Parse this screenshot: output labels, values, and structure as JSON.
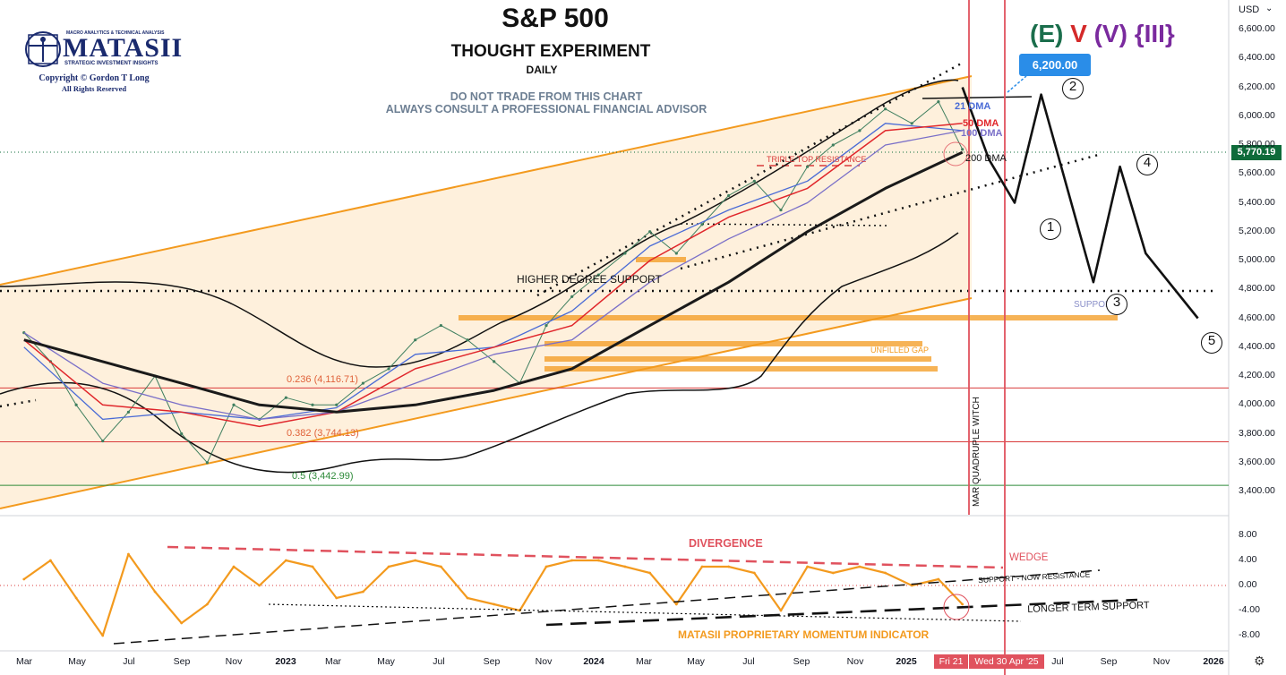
{
  "header": {
    "title": "S&P 500",
    "subtitle": "THOUGHT EXPERIMENT",
    "interval": "DAILY",
    "disclaimer_line1": "DO NOT TRADE FROM THIS CHART",
    "disclaimer_line2": "ALWAYS CONSULT A PROFESSIONAL FINANCIAL ADVISOR",
    "wave_label_e": "(E)",
    "wave_label_v": "V",
    "wave_label_paren_v": "(V)",
    "wave_label_iii": "{III}"
  },
  "logo": {
    "top_text": "MACRO ANALYTICS & TECHNICAL ANALYSIS",
    "name": "MATASII",
    "tagline": "STRATEGIC INVESTMENT INSIGHTS",
    "copyright": "Copyright © Gordon T Long",
    "rights": "All Rights Reserved"
  },
  "toolbar": {
    "currency": "USD",
    "currency_caret": "⌄",
    "settings_icon": "gear-icon"
  },
  "price_tag": "5,770.19",
  "target_tag": "6,200.00",
  "time_tags": {
    "last_bar": "Fri 21",
    "cursor_date": "Wed 30 Apr '25"
  },
  "annotations": {
    "dma_21": "21 DMA",
    "dma_50": "50 DMA",
    "dma_100": "100 DMA",
    "dma_200": "200 DMA",
    "triple_top": "TRIPLE TOP RESISTANCE",
    "higher_degree_support": "HIGHER DEGREE SUPPORT",
    "unfilled_gap": "UNFILLED GAP",
    "support": "SUPPORT",
    "quad_witch": "MAR QUADRUPLE WITCH",
    "fib_236": "0.236 (4,116.71)",
    "fib_382": "0.382 (3,744.13)",
    "fib_5": "0.5 (3,442.99)",
    "divergence": "DIVERGENCE",
    "wedge": "WEDGE",
    "support_resistance": "SUPPORT - NOW RESISTANCE",
    "longer_term_support": "LONGER TERM SUPPORT",
    "momentum_indicator": "MATASII PROPRIETARY MOMENTUM INDICATOR"
  },
  "wave_points": [
    "1",
    "2",
    "3",
    "4",
    "5"
  ],
  "colors": {
    "channel": "#f39a1e",
    "channel_fill": "#fdebd0",
    "price": "#3f7f5f",
    "dma_21": "#4a6bd6",
    "dma_50": "#e0262b",
    "dma_100": "#7a6fc8",
    "dma_200": "#1a1a1a",
    "fib_line": "#d93b3b",
    "fib_05": "#2e8b3a",
    "vertical_marker": "#e0525e",
    "momentum": "#f39a1e",
    "divergence": "#e0525e",
    "wave_e": "#1b6e4c",
    "wave_v": "#d42a2a",
    "wave_iii": "#7a2a9e"
  },
  "chart_data": [
    {
      "type": "line",
      "title": "S&P 500",
      "series": [
        {
          "name": "S&P 500",
          "x": [
            "2022-03",
            "2022-04",
            "2022-05",
            "2022-06",
            "2022-07",
            "2022-08",
            "2022-09",
            "2022-10",
            "2022-11",
            "2022-12",
            "2023-01",
            "2023-02",
            "2023-03",
            "2023-04",
            "2023-05",
            "2023-06",
            "2023-07",
            "2023-08",
            "2023-09",
            "2023-10",
            "2023-11",
            "2023-12",
            "2024-01",
            "2024-02",
            "2024-03",
            "2024-04",
            "2024-05",
            "2024-06",
            "2024-07",
            "2024-08",
            "2024-09",
            "2024-10",
            "2024-11",
            "2024-12",
            "2025-01",
            "2025-02",
            "2025-03"
          ],
          "values": [
            4500,
            4300,
            4000,
            3750,
            3950,
            4200,
            3800,
            3600,
            4000,
            3900,
            4050,
            4000,
            4000,
            4150,
            4250,
            4450,
            4550,
            4450,
            4300,
            4150,
            4550,
            4750,
            4900,
            5050,
            5200,
            5050,
            5250,
            5450,
            5550,
            5350,
            5650,
            5800,
            5900,
            6050,
            5950,
            6100,
            5770
          ]
        },
        {
          "name": "21 DMA",
          "x": [
            "2022-03",
            "2022-06",
            "2022-09",
            "2022-12",
            "2023-03",
            "2023-06",
            "2023-09",
            "2023-12",
            "2024-03",
            "2024-06",
            "2024-09",
            "2024-12",
            "2025-03"
          ],
          "values": [
            4400,
            3900,
            3950,
            3900,
            3980,
            4350,
            4400,
            4650,
            5100,
            5350,
            5550,
            5950,
            5900
          ]
        },
        {
          "name": "50 DMA",
          "x": [
            "2022-03",
            "2022-06",
            "2022-09",
            "2022-12",
            "2023-03",
            "2023-06",
            "2023-09",
            "2023-12",
            "2024-03",
            "2024-06",
            "2024-09",
            "2024-12",
            "2025-03"
          ],
          "values": [
            4450,
            4000,
            3950,
            3850,
            3950,
            4250,
            4400,
            4550,
            5000,
            5300,
            5500,
            5900,
            5950
          ]
        },
        {
          "name": "100 DMA",
          "x": [
            "2022-03",
            "2022-06",
            "2022-09",
            "2022-12",
            "2023-03",
            "2023-06",
            "2023-09",
            "2023-12",
            "2024-03",
            "2024-06",
            "2024-09",
            "2024-12",
            "2025-03"
          ],
          "values": [
            4500,
            4150,
            4000,
            3900,
            3950,
            4150,
            4350,
            4450,
            4850,
            5150,
            5400,
            5800,
            5900
          ]
        },
        {
          "name": "200 DMA",
          "x": [
            "2022-03",
            "2022-06",
            "2022-09",
            "2022-12",
            "2023-03",
            "2023-06",
            "2023-09",
            "2023-12",
            "2024-03",
            "2024-06",
            "2024-09",
            "2024-12",
            "2025-03"
          ],
          "values": [
            4450,
            4300,
            4150,
            4000,
            3950,
            4000,
            4100,
            4250,
            4550,
            4850,
            5200,
            5500,
            5750
          ]
        },
        {
          "name": "Projection",
          "x": [
            "2025-03",
            "2025-04",
            "2025-05",
            "2025-06",
            "2025-08",
            "2025-09",
            "2025-10",
            "2025-12"
          ],
          "values": [
            6200,
            5700,
            5400,
            6150,
            4850,
            5650,
            5050,
            4600
          ]
        }
      ],
      "ylim": [
        3300,
        6700
      ],
      "yticks": [
        "6,600.00",
        "6,400.00",
        "6,200.00",
        "6,000.00",
        "5,800.00",
        "5,600.00",
        "5,400.00",
        "5,200.00",
        "5,000.00",
        "4,800.00",
        "4,600.00",
        "4,400.00",
        "4,200.00",
        "4,000.00",
        "3,800.00",
        "3,600.00",
        "3,400.00"
      ],
      "xticks": [
        "Mar",
        "May",
        "Jul",
        "Sep",
        "Nov",
        "2023",
        "Mar",
        "May",
        "Jul",
        "Sep",
        "Nov",
        "2024",
        "Mar",
        "May",
        "Jul",
        "Sep",
        "Nov",
        "2025",
        "Jul",
        "Sep",
        "Nov",
        "2026"
      ],
      "levels": {
        "fib_236": 4116.71,
        "fib_382": 3744.13,
        "fib_5": 3442.99,
        "support": 4800,
        "target": 6200
      },
      "grid": false,
      "legend": "none"
    },
    {
      "type": "line",
      "title": "MATASII PROPRIETARY MOMENTUM INDICATOR",
      "series": [
        {
          "name": "Momentum",
          "x": [
            "2022-03",
            "2022-04",
            "2022-05",
            "2022-06",
            "2022-07",
            "2022-08",
            "2022-09",
            "2022-10",
            "2022-11",
            "2022-12",
            "2023-01",
            "2023-02",
            "2023-03",
            "2023-04",
            "2023-05",
            "2023-06",
            "2023-07",
            "2023-08",
            "2023-09",
            "2023-10",
            "2023-11",
            "2023-12",
            "2024-01",
            "2024-02",
            "2024-03",
            "2024-04",
            "2024-05",
            "2024-06",
            "2024-07",
            "2024-08",
            "2024-09",
            "2024-10",
            "2024-11",
            "2024-12",
            "2025-01",
            "2025-02",
            "2025-03"
          ],
          "values": [
            1,
            4,
            -2,
            -8,
            5,
            -1,
            -6,
            -3,
            3,
            0,
            4,
            3,
            -2,
            -1,
            3,
            4,
            3,
            -2,
            -3,
            -4,
            3,
            4,
            4,
            3,
            2,
            -3,
            3,
            3,
            2,
            -4,
            3,
            2,
            3,
            2,
            0,
            1,
            -3
          ]
        }
      ],
      "ylim": [
        -9.5,
        9
      ],
      "yticks": [
        "8.00",
        "4.00",
        "0.00",
        "-4.00",
        "-8.00"
      ],
      "grid": false,
      "legend": "none"
    }
  ]
}
